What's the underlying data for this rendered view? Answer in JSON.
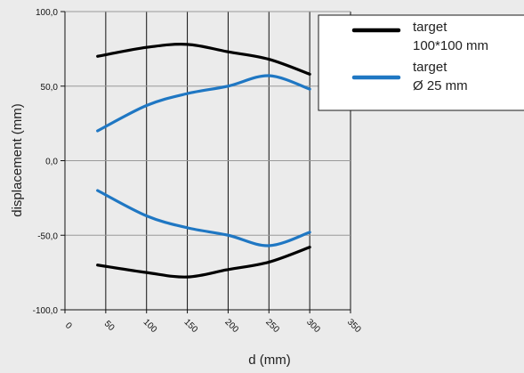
{
  "chart_data": {
    "type": "line",
    "xlabel": "d (mm)",
    "ylabel": "displacement (mm)",
    "xlim": [
      0,
      350
    ],
    "ylim": [
      -100,
      100
    ],
    "x_ticks": [
      "0",
      "50",
      "100",
      "150",
      "200",
      "250",
      "300",
      "350"
    ],
    "y_ticks": [
      "100,0",
      "50,0",
      "0,0",
      "-50,0",
      "-100,0"
    ],
    "grid": true,
    "legend_position": "top-right",
    "legend": [
      {
        "label_line1": "target",
        "label_line2": "100*100 mm",
        "color": "#000000"
      },
      {
        "label_line1": "target",
        "label_line2": "Ø 25 mm",
        "color": "#1f77c3"
      }
    ],
    "series": [
      {
        "group": "target 100*100 mm",
        "color": "#000000",
        "x": [
          40,
          100,
          150,
          200,
          250,
          300
        ],
        "y": [
          70,
          76,
          78,
          73,
          68,
          58
        ]
      },
      {
        "group": "target 100*100 mm",
        "color": "#000000",
        "x": [
          40,
          100,
          150,
          200,
          250,
          300
        ],
        "y": [
          -70,
          -75,
          -78,
          -73,
          -68,
          -58
        ]
      },
      {
        "group": "target Ø 25 mm",
        "color": "#1f77c3",
        "x": [
          40,
          100,
          150,
          200,
          250,
          300
        ],
        "y": [
          20,
          37,
          45,
          50,
          57,
          48
        ]
      },
      {
        "group": "target Ø 25 mm",
        "color": "#1f77c3",
        "x": [
          40,
          100,
          150,
          200,
          250,
          300
        ],
        "y": [
          -20,
          -37,
          -45,
          -50,
          -57,
          -48
        ]
      }
    ]
  }
}
